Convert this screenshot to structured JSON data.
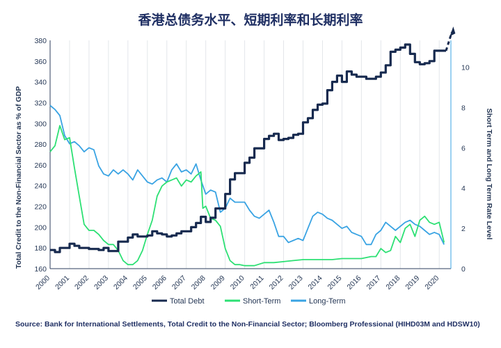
{
  "chart_data": {
    "type": "line",
    "title": "香港总债务水平、短期利率和长期利率",
    "ylabel": "Total Credit to the Non-Financial Sector as % of GDP",
    "y2label": "Short Term and Long Term Rate Level",
    "ylim": [
      160,
      380
    ],
    "y2lim": [
      0,
      11.33
    ],
    "yticks": [
      "160",
      "180",
      "200",
      "220",
      "240",
      "260",
      "280",
      "300",
      "320",
      "340",
      "360",
      "380"
    ],
    "y2ticks": [
      "0",
      "2",
      "4",
      "6",
      "8",
      "10"
    ],
    "xticks": [
      "2000",
      "2001",
      "2002",
      "2003",
      "2004",
      "2005",
      "2006",
      "2007",
      "2008",
      "2009",
      "2010",
      "2011",
      "2012",
      "2013",
      "2014",
      "2015",
      "2016",
      "2017",
      "2018",
      "2019",
      "2020"
    ],
    "grid": "vertical",
    "legend": "bottom",
    "source": "Source: Bank for International Settlements, Total Credit to the Non-Financial Sector; Bloomberg Professional (HIHD03M and HDSW10)",
    "series": [
      {
        "name": "Total Debt",
        "axis": "left",
        "color": "#172a4f",
        "style": "step",
        "x": [
          2000.0,
          2000.25,
          2000.5,
          2000.75,
          2001.0,
          2001.25,
          2001.5,
          2001.75,
          2002.0,
          2002.25,
          2002.5,
          2002.75,
          2003.0,
          2003.25,
          2003.5,
          2003.75,
          2004.0,
          2004.25,
          2004.5,
          2004.75,
          2005.0,
          2005.25,
          2005.5,
          2005.75,
          2006.0,
          2006.25,
          2006.5,
          2006.75,
          2007.0,
          2007.25,
          2007.5,
          2007.75,
          2008.0,
          2008.25,
          2008.5,
          2008.75,
          2009.0,
          2009.25,
          2009.5,
          2009.75,
          2010.0,
          2010.25,
          2010.5,
          2010.75,
          2011.0,
          2011.25,
          2011.5,
          2011.75,
          2012.0,
          2012.25,
          2012.5,
          2012.75,
          2013.0,
          2013.25,
          2013.5,
          2013.75,
          2014.0,
          2014.25,
          2014.5,
          2014.75,
          2015.0,
          2015.25,
          2015.5,
          2015.75,
          2016.0,
          2016.25,
          2016.5,
          2016.75,
          2017.0,
          2017.25,
          2017.5,
          2017.75,
          2018.0,
          2018.25,
          2018.5,
          2018.75,
          2019.0,
          2019.25,
          2019.5,
          2019.75,
          2020.0,
          2020.25
        ],
        "values": [
          178,
          176,
          180,
          180,
          184,
          182,
          180,
          180,
          179,
          179,
          178,
          180,
          177,
          177,
          186,
          186,
          190,
          193,
          191,
          191,
          192,
          196,
          194,
          193,
          191,
          192,
          194,
          196,
          196,
          200,
          204,
          210,
          205,
          209,
          218,
          218,
          232,
          246,
          252,
          252,
          262,
          267,
          276,
          276,
          285,
          288,
          290,
          284,
          285,
          286,
          289,
          290,
          301,
          305,
          313,
          318,
          319,
          332,
          340,
          346,
          340,
          350,
          347,
          345,
          345,
          343,
          343,
          345,
          349,
          356,
          369,
          371,
          373,
          376,
          367,
          359,
          357,
          358,
          360,
          370,
          370,
          370
        ],
        "forecast": {
          "from": [
            2020.35,
            370
          ],
          "to": [
            2020.65,
            388
          ]
        }
      },
      {
        "name": "Short-Term",
        "axis": "right",
        "color": "#2de074",
        "x": [
          2000.0,
          2000.25,
          2000.5,
          2000.75,
          2001.0,
          2001.25,
          2001.5,
          2001.75,
          2002.0,
          2002.25,
          2002.5,
          2002.75,
          2003.0,
          2003.25,
          2003.5,
          2003.75,
          2004.0,
          2004.25,
          2004.5,
          2004.75,
          2005.0,
          2005.25,
          2005.5,
          2005.75,
          2006.0,
          2006.25,
          2006.5,
          2006.75,
          2007.0,
          2007.25,
          2007.5,
          2007.75,
          2007.85,
          2008.0,
          2008.25,
          2008.5,
          2008.75,
          2009.0,
          2009.25,
          2009.5,
          2009.75,
          2010.0,
          2010.5,
          2011.0,
          2011.5,
          2012.0,
          2012.5,
          2013.0,
          2013.5,
          2014.0,
          2014.5,
          2015.0,
          2015.5,
          2016.0,
          2016.5,
          2016.75,
          2017.0,
          2017.25,
          2017.5,
          2017.75,
          2018.0,
          2018.25,
          2018.5,
          2018.75,
          2019.0,
          2019.25,
          2019.5,
          2019.75,
          2020.0,
          2020.25
        ],
        "values": [
          5.8,
          6.1,
          7.1,
          6.4,
          6.5,
          5.0,
          3.6,
          2.2,
          1.9,
          1.9,
          1.7,
          1.4,
          1.2,
          1.2,
          0.9,
          0.4,
          0.2,
          0.2,
          0.4,
          0.9,
          1.7,
          2.4,
          3.6,
          4.1,
          4.3,
          4.4,
          4.5,
          4.1,
          4.4,
          4.3,
          4.6,
          4.8,
          3.0,
          3.1,
          2.5,
          2.4,
          2.1,
          1.0,
          0.4,
          0.2,
          0.2,
          0.15,
          0.15,
          0.3,
          0.3,
          0.35,
          0.4,
          0.45,
          0.45,
          0.45,
          0.45,
          0.5,
          0.5,
          0.5,
          0.6,
          0.6,
          1.0,
          0.8,
          0.9,
          1.6,
          1.3,
          2.0,
          2.2,
          1.6,
          2.4,
          2.6,
          2.3,
          2.2,
          2.3,
          1.3
        ]
      },
      {
        "name": "Long-Term",
        "axis": "right",
        "color": "#39a3e3",
        "x": [
          2000.0,
          2000.25,
          2000.5,
          2000.75,
          2001.0,
          2001.25,
          2001.5,
          2001.75,
          2002.0,
          2002.25,
          2002.5,
          2002.75,
          2003.0,
          2003.25,
          2003.5,
          2003.75,
          2004.0,
          2004.25,
          2004.5,
          2004.75,
          2005.0,
          2005.25,
          2005.5,
          2005.75,
          2006.0,
          2006.25,
          2006.5,
          2006.75,
          2007.0,
          2007.25,
          2007.5,
          2007.75,
          2008.0,
          2008.25,
          2008.5,
          2008.75,
          2009.0,
          2009.25,
          2009.5,
          2009.75,
          2010.0,
          2010.25,
          2010.5,
          2010.75,
          2011.0,
          2011.25,
          2011.5,
          2011.75,
          2012.0,
          2012.25,
          2012.5,
          2012.75,
          2013.0,
          2013.25,
          2013.5,
          2013.75,
          2014.0,
          2014.25,
          2014.5,
          2014.75,
          2015.0,
          2015.25,
          2015.5,
          2015.75,
          2016.0,
          2016.25,
          2016.5,
          2016.75,
          2017.0,
          2017.25,
          2017.5,
          2017.75,
          2018.0,
          2018.25,
          2018.5,
          2018.75,
          2019.0,
          2019.25,
          2019.5,
          2019.75,
          2020.0,
          2020.25
        ],
        "values": [
          8.1,
          7.9,
          7.6,
          6.6,
          6.2,
          6.3,
          6.1,
          5.8,
          6.0,
          5.9,
          5.1,
          4.7,
          4.6,
          4.9,
          4.7,
          4.9,
          4.7,
          4.4,
          4.9,
          4.6,
          4.3,
          4.2,
          4.4,
          4.5,
          4.3,
          4.9,
          5.2,
          4.8,
          4.9,
          4.7,
          5.2,
          4.4,
          3.7,
          3.9,
          3.8,
          2.8,
          3.0,
          3.5,
          3.3,
          3.3,
          3.3,
          2.9,
          2.6,
          2.5,
          2.7,
          2.9,
          2.3,
          1.6,
          1.6,
          1.3,
          1.4,
          1.5,
          1.4,
          2.0,
          2.6,
          2.8,
          2.7,
          2.5,
          2.4,
          2.2,
          2.0,
          2.1,
          1.8,
          1.7,
          1.6,
          1.2,
          1.2,
          1.7,
          1.9,
          2.3,
          2.1,
          1.9,
          2.1,
          2.3,
          2.4,
          2.2,
          2.1,
          1.9,
          1.7,
          1.8,
          1.7,
          1.2
        ]
      }
    ]
  }
}
